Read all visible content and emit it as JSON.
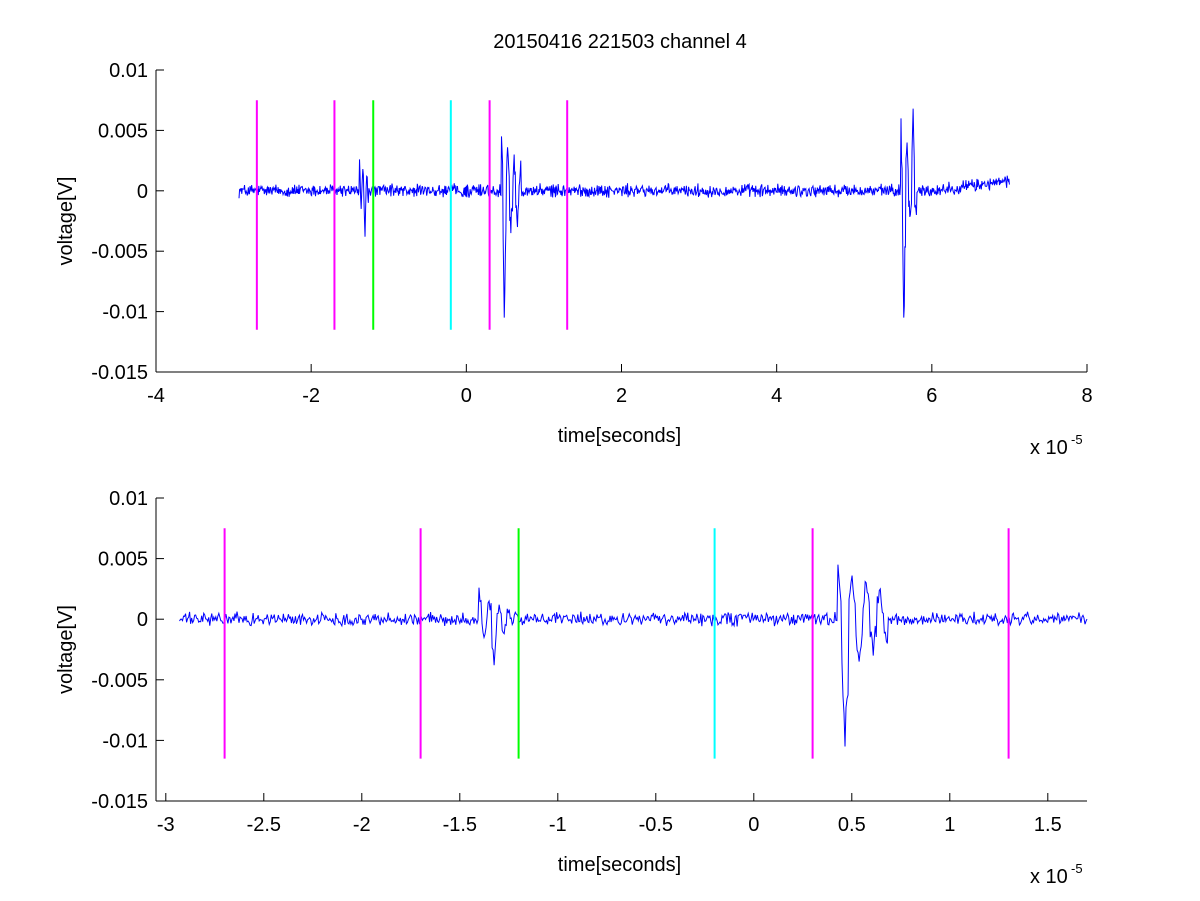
{
  "figure": {
    "title": "20150416 221503 channel 4"
  },
  "chart_data": [
    {
      "type": "line",
      "xlabel": "time[seconds]",
      "ylabel": "voltage[V]",
      "x_exponent_label": "x 10",
      "x_exponent": "-5",
      "xlim": [
        -4e-05,
        8e-05
      ],
      "ylim": [
        -0.015,
        0.01
      ],
      "x_ticks": [
        -4e-05,
        -2e-05,
        0,
        2e-05,
        4e-05,
        6e-05,
        8e-05
      ],
      "x_tick_labels": [
        "-4",
        "-2",
        "0",
        "2",
        "4",
        "6",
        "8"
      ],
      "y_ticks": [
        -0.015,
        -0.01,
        -0.005,
        0,
        0.005,
        0.01
      ],
      "y_tick_labels": [
        "-0.015",
        "-0.01",
        "-0.005",
        "0",
        "0.005",
        "0.01"
      ],
      "grid": false,
      "series": [
        {
          "color": "#0000ff",
          "x_range": [
            -2.93e-05,
            7e-05
          ],
          "baseline_noise": 0.0004,
          "bursts": [
            {
              "t": -1.38e-05,
              "duration": 1.2e-06,
              "values": [
                0.0026,
                -0.0015,
                0.0018,
                -0.0038,
                0.0012,
                -0.001
              ]
            },
            {
              "t": 4.5e-06,
              "duration": 2.5e-06,
              "values": [
                0.0045,
                -0.0105,
                0.0036,
                -0.0035,
                0.003,
                -0.003,
                0.0025
              ]
            },
            {
              "t": 5.6e-05,
              "duration": 2e-06,
              "values": [
                0.006,
                -0.0105,
                0.004,
                -0.002,
                0.0068,
                -0.002
              ]
            }
          ],
          "end_drift": {
            "from": 6e-05,
            "to": 7e-05,
            "offset": 0.0008
          }
        }
      ],
      "markers": [
        {
          "x": -2.7e-05,
          "color": "#ff00ff",
          "y_range": [
            -0.0115,
            0.0075
          ]
        },
        {
          "x": -1.7e-05,
          "color": "#ff00ff",
          "y_range": [
            -0.0115,
            0.0075
          ]
        },
        {
          "x": -1.2e-05,
          "color": "#00ff00",
          "y_range": [
            -0.0115,
            0.0075
          ]
        },
        {
          "x": -2e-06,
          "color": "#00ffff",
          "y_range": [
            -0.0115,
            0.0075
          ]
        },
        {
          "x": 3e-06,
          "color": "#ff00ff",
          "y_range": [
            -0.0115,
            0.0075
          ]
        },
        {
          "x": 1.3e-05,
          "color": "#ff00ff",
          "y_range": [
            -0.0115,
            0.0075
          ]
        }
      ]
    },
    {
      "type": "line",
      "xlabel": "time[seconds]",
      "ylabel": "voltage[V]",
      "x_exponent_label": "x 10",
      "x_exponent": "-5",
      "xlim": [
        -3.05e-05,
        1.7e-05
      ],
      "ylim": [
        -0.015,
        0.01
      ],
      "x_ticks": [
        -3e-05,
        -2.5e-05,
        -2e-05,
        -1.5e-05,
        -1e-05,
        -5e-06,
        0,
        5e-06,
        1e-05,
        1.5e-05
      ],
      "x_tick_labels": [
        "-3",
        "-2.5",
        "-2",
        "-1.5",
        "-1",
        "-0.5",
        "0",
        "0.5",
        "1",
        "1.5"
      ],
      "y_ticks": [
        -0.015,
        -0.01,
        -0.005,
        0,
        0.005,
        0.01
      ],
      "y_tick_labels": [
        "-0.015",
        "-0.01",
        "-0.005",
        "0",
        "0.005",
        "0.01"
      ],
      "grid": false,
      "series": [
        {
          "color": "#0000ff",
          "x_range": [
            -2.93e-05,
            1.7e-05
          ],
          "baseline_noise": 0.0004,
          "bursts": [
            {
              "t": -1.4e-05,
              "duration": 1.5e-06,
              "values": [
                0.0026,
                -0.0015,
                0.0015,
                -0.0038,
                0.0012,
                -0.0012,
                0.0008
              ]
            },
            {
              "t": 4.3e-06,
              "duration": 2.5e-06,
              "values": [
                0.0045,
                -0.0105,
                0.0036,
                -0.0035,
                0.003,
                -0.003,
                0.0025,
                -0.002
              ]
            }
          ]
        }
      ],
      "markers": [
        {
          "x": -2.7e-05,
          "color": "#ff00ff",
          "y_range": [
            -0.0115,
            0.0075
          ]
        },
        {
          "x": -1.7e-05,
          "color": "#ff00ff",
          "y_range": [
            -0.0115,
            0.0075
          ]
        },
        {
          "x": -1.2e-05,
          "color": "#00ff00",
          "y_range": [
            -0.0115,
            0.0075
          ]
        },
        {
          "x": -2e-06,
          "color": "#00ffff",
          "y_range": [
            -0.0115,
            0.0075
          ]
        },
        {
          "x": 3e-06,
          "color": "#ff00ff",
          "y_range": [
            -0.0115,
            0.0075
          ]
        },
        {
          "x": 1.3e-05,
          "color": "#ff00ff",
          "y_range": [
            -0.0115,
            0.0075
          ]
        }
      ]
    }
  ]
}
